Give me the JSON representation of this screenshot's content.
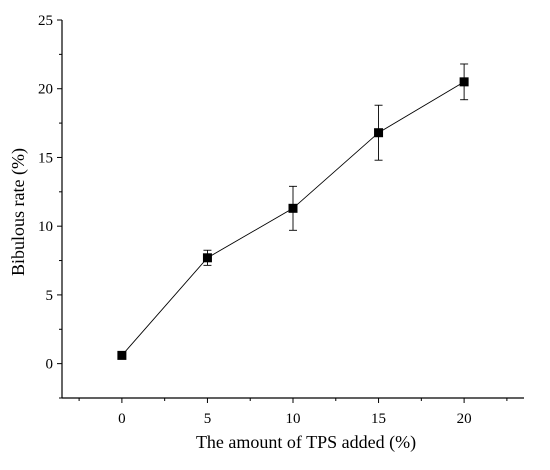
{
  "chart_data": {
    "type": "line",
    "title": "",
    "xlabel": "The amount of TPS added (%)",
    "ylabel": "Bibulous rate (%)",
    "xlim": [
      -3.5,
      23.5
    ],
    "ylim": [
      -2.5,
      25
    ],
    "x_ticks": [
      0,
      5,
      10,
      15,
      20
    ],
    "y_ticks": [
      0,
      5,
      10,
      15,
      20,
      25
    ],
    "x_tick_labels": [
      "0",
      "5",
      "10",
      "15",
      "20"
    ],
    "y_tick_labels": [
      "0",
      "5",
      "10",
      "15",
      "20",
      "25"
    ],
    "grid": false,
    "legend": "none",
    "marker": "square",
    "color": "#000000",
    "series": [
      {
        "x": [
          0,
          5,
          10,
          15,
          20
        ],
        "y": [
          0.6,
          7.7,
          11.3,
          16.8,
          20.5
        ],
        "error": [
          0,
          0.55,
          1.6,
          2.0,
          1.3
        ]
      }
    ]
  }
}
